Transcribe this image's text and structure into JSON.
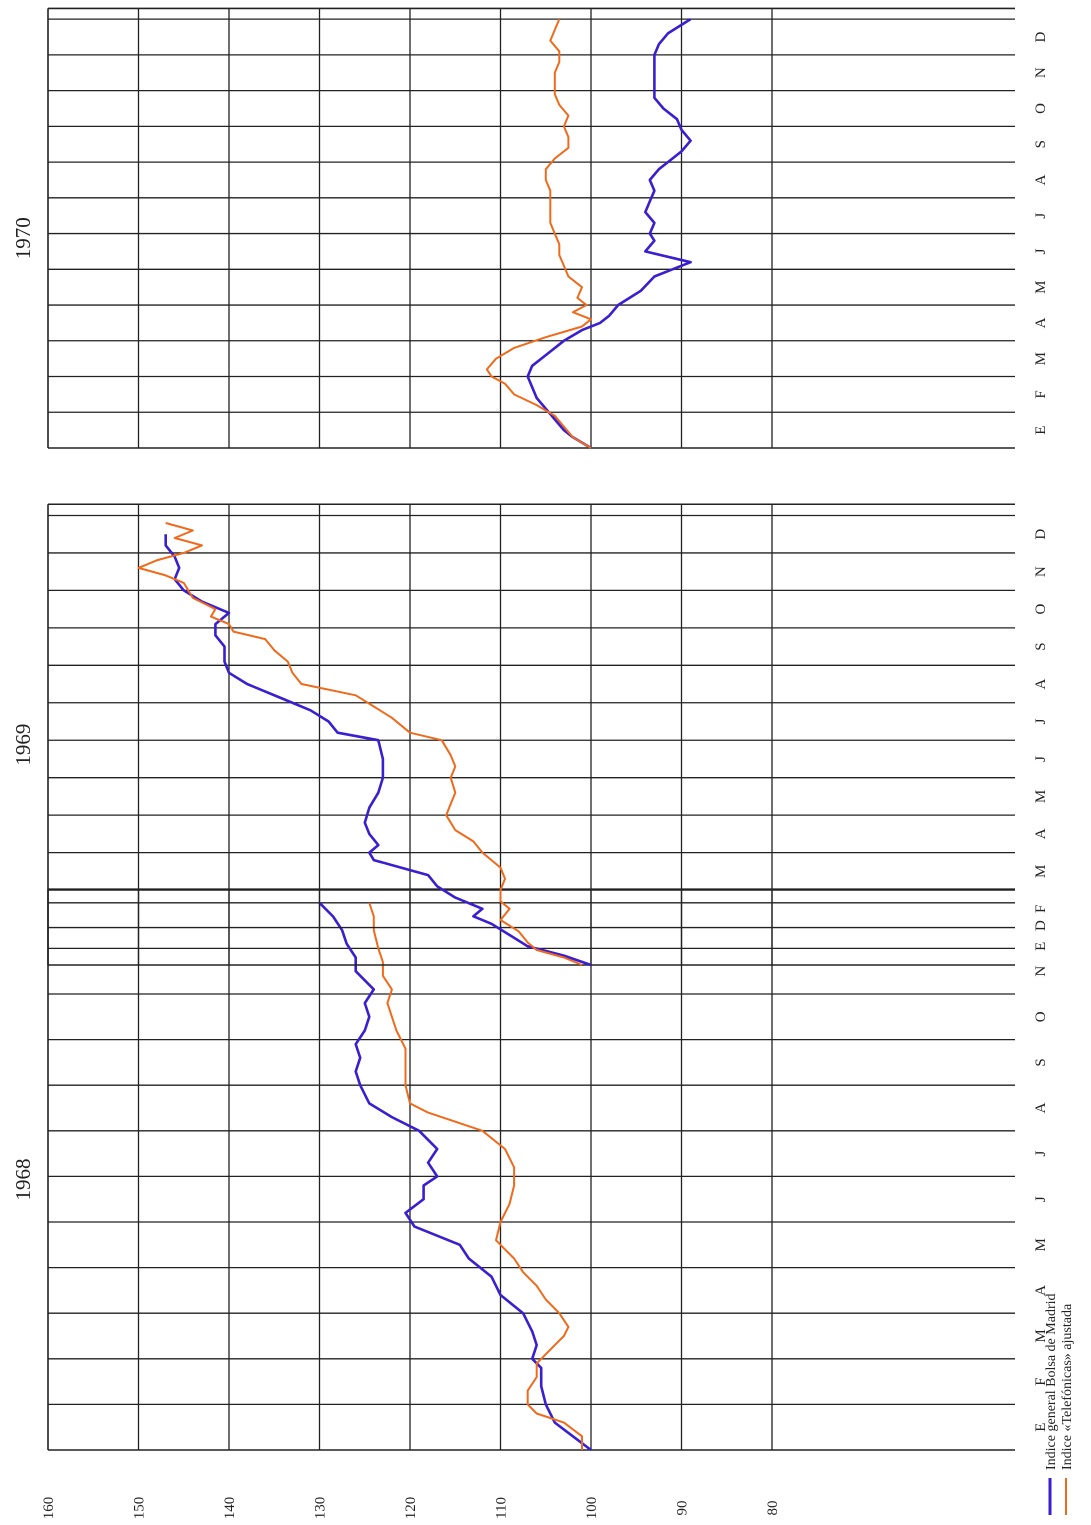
{
  "chart_data": {
    "type": "line",
    "orientation": "rotated-90-ccw",
    "y_axis_ticks": [
      160,
      150,
      140,
      130,
      120,
      110,
      100,
      90,
      80
    ],
    "ylim": [
      80,
      160
    ],
    "grid": true,
    "legend_placement": "bottom-left",
    "legend": [
      "Indice general Bolsa de Madrid",
      "Indice «Telefónicas» ajustada"
    ],
    "colors": {
      "general": "#3a1fd0",
      "telefonicas": "#f06a1c"
    },
    "panels": [
      {
        "year": "1968",
        "months": [
          "E",
          "F",
          "M",
          "A",
          "M",
          "J",
          "J",
          "A",
          "S",
          "O",
          "N",
          "D"
        ],
        "series": [
          {
            "name": "Indice general Bolsa de Madrid",
            "key": "general",
            "x": [
              0,
              0.3,
              0.6,
              1.0,
              1.4,
              1.8,
              2.0,
              2.3,
              2.6,
              3.0,
              3.4,
              3.8,
              4.2,
              4.5,
              4.9,
              5.2,
              5.5,
              5.8,
              6.0,
              6.3,
              6.6,
              7.0,
              7.3,
              7.6,
              8.0,
              8.3,
              8.6,
              8.9,
              9.2,
              9.5,
              9.8,
              10.1,
              10.5,
              10.8,
              11.1,
              11.4,
              11.7,
              12.0
            ],
            "y": [
              100,
              102,
              104,
              105,
              105.5,
              105.5,
              106.5,
              106,
              106.5,
              107.5,
              110,
              111,
              113.5,
              114.5,
              119.5,
              120.5,
              118.5,
              118.5,
              117,
              118,
              117,
              119,
              122,
              124.5,
              125.5,
              126,
              125.5,
              126,
              125,
              124.5,
              125,
              124,
              126,
              126,
              127,
              127.5,
              128.5,
              130
            ]
          },
          {
            "name": "Indice «Telefónicas» ajustada",
            "key": "telefonicas",
            "x": [
              0,
              0.3,
              0.6,
              0.8,
              1.0,
              1.3,
              1.6,
              1.9,
              2.1,
              2.3,
              2.5,
              2.7,
              3.0,
              3.3,
              3.6,
              3.9,
              4.2,
              4.4,
              4.6,
              5.0,
              5.4,
              5.8,
              6.2,
              6.6,
              7.0,
              7.2,
              7.4,
              7.6,
              8.0,
              8.4,
              8.8,
              9.2,
              9.5,
              9.8,
              10.1,
              10.4,
              10.7,
              11.0,
              11.4,
              11.7,
              12.0
            ],
            "y": [
              101,
              101,
              103,
              106,
              107,
              107,
              106,
              106,
              105,
              104,
              103,
              102.5,
              103.5,
              105,
              106,
              107.5,
              108.5,
              109.5,
              110.5,
              110,
              109,
              108.5,
              108.5,
              109.5,
              112,
              115,
              118,
              120,
              120.5,
              120.5,
              120.5,
              121.5,
              122,
              122.5,
              122,
              123,
              123,
              123.5,
              124,
              124,
              124.5
            ]
          }
        ]
      },
      {
        "year": "1969",
        "months": [
          "E",
          "F",
          "M",
          "A",
          "M",
          "J",
          "J",
          "A",
          "S",
          "O",
          "N",
          "D"
        ],
        "series": [
          {
            "name": "Indice general Bolsa de Madrid",
            "key": "general",
            "x": [
              0,
              0.25,
              0.5,
              0.8,
              1.1,
              1.3,
              1.5,
              1.8,
              2.1,
              2.4,
              2.6,
              2.8,
              3.0,
              3.2,
              3.5,
              3.8,
              4.2,
              4.6,
              5.0,
              5.5,
              6.0,
              6.2,
              6.5,
              6.8,
              7.1,
              7.5,
              7.8,
              8.1,
              8.5,
              8.8,
              9.1,
              9.4,
              9.7,
              10.0,
              10.3,
              10.6,
              10.9,
              11.2,
              11.5
            ],
            "y": [
              100,
              103,
              107,
              109,
              111,
              113,
              112,
              115,
              117,
              118,
              121,
              124,
              124.5,
              123.5,
              124.5,
              125,
              124.5,
              123.5,
              123,
              123,
              123.5,
              128,
              129,
              131,
              134,
              138,
              140,
              140.5,
              140.5,
              141.5,
              141.5,
              140,
              143,
              145,
              146,
              145.5,
              146,
              147,
              147
            ]
          },
          {
            "name": "Indice «Telefónicas» ajustada",
            "key": "telefonicas",
            "x": [
              0,
              0.2,
              0.4,
              0.6,
              0.9,
              1.2,
              1.5,
              1.7,
              2.0,
              2.3,
              2.6,
              3.0,
              3.3,
              3.6,
              4.0,
              4.3,
              4.6,
              5.0,
              5.3,
              5.6,
              6.0,
              6.2,
              6.4,
              6.6,
              6.9,
              7.2,
              7.5,
              7.8,
              8.1,
              8.4,
              8.7,
              8.9,
              9.1,
              9.3,
              9.5,
              9.8,
              10.0,
              10.2,
              10.4,
              10.6,
              10.8,
              11.0,
              11.2,
              11.4,
              11.6,
              11.8
            ],
            "y": [
              101,
              103,
              106,
              107,
              108,
              110,
              109,
              110,
              110,
              109.5,
              110,
              112,
              113,
              115,
              116,
              115.5,
              115,
              115.5,
              115,
              115.5,
              116.5,
              120,
              121,
              122,
              124,
              126,
              132,
              133,
              133.5,
              135,
              136,
              139.5,
              140,
              142,
              141.5,
              144,
              144.5,
              145,
              147,
              150,
              148,
              145,
              143,
              146,
              144,
              147
            ]
          }
        ]
      },
      {
        "year": "1970",
        "months": [
          "E",
          "F",
          "M",
          "A",
          "M",
          "J",
          "J",
          "A",
          "S",
          "O",
          "N",
          "D"
        ],
        "series": [
          {
            "name": "Indice general Bolsa de Madrid",
            "key": "general",
            "x": [
              0,
              0.15,
              0.3,
              0.5,
              0.8,
              1.1,
              1.4,
              1.7,
              2.0,
              2.3,
              2.6,
              3.0,
              3.3,
              3.5,
              3.7,
              4.0,
              4.4,
              4.8,
              5.0,
              5.2,
              5.5,
              5.8,
              6.0,
              6.3,
              6.6,
              6.9,
              7.2,
              7.5,
              7.8,
              8.0,
              8.3,
              8.6,
              8.9,
              9.2,
              9.5,
              9.8,
              10.1,
              10.4,
              10.7,
              11.0,
              11.3,
              11.6,
              12.0
            ],
            "y": [
              100,
              101,
              102,
              103,
              104,
              105,
              106,
              106.5,
              107,
              106.5,
              105,
              103,
              101,
              99,
              98,
              97,
              94.5,
              93,
              91,
              89,
              94,
              93,
              93.5,
              93,
              94,
              93.5,
              93,
              93.5,
              92.5,
              91.5,
              90,
              89,
              90,
              90.5,
              92,
              93,
              93,
              93,
              93,
              93,
              92.5,
              91.5,
              89
            ]
          },
          {
            "name": "Indice «Telefónicas» ajustada",
            "key": "telefonicas",
            "x": [
              0,
              0.3,
              0.6,
              0.9,
              1.2,
              1.5,
              1.8,
              2.0,
              2.2,
              2.5,
              2.8,
              3.1,
              3.4,
              3.6,
              3.8,
              4.0,
              4.2,
              4.5,
              4.8,
              5.1,
              5.4,
              5.7,
              6.0,
              6.3,
              6.6,
              6.9,
              7.2,
              7.5,
              7.8,
              8.1,
              8.4,
              8.7,
              9.0,
              9.3,
              9.6,
              9.9,
              10.2,
              10.5,
              10.8,
              11.1,
              11.4,
              11.7,
              12.0
            ],
            "y": [
              100,
              102,
              103,
              104,
              106,
              108.5,
              109.5,
              111,
              111.5,
              110.5,
              108.5,
              105,
              101,
              100,
              102,
              100.5,
              101.5,
              101,
              102.5,
              103,
              103.5,
              103.5,
              104,
              104.5,
              104.5,
              104.5,
              104.5,
              105,
              105,
              104,
              102.5,
              102.5,
              103,
              102.5,
              103.5,
              104,
              104,
              104,
              103.5,
              103.5,
              104.5,
              104,
              103.5
            ]
          }
        ]
      }
    ]
  }
}
